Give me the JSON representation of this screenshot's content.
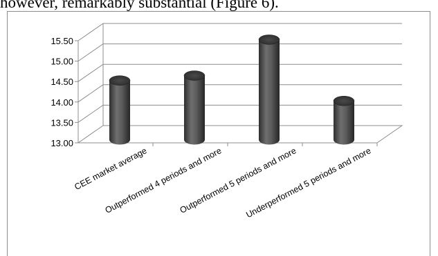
{
  "header_text": "however, remarkably substantial (Figure 6).",
  "chart_data": {
    "type": "bar",
    "style": "3d-cylinder",
    "color": "#5a5a5a",
    "categories": [
      "CEE market average",
      "Outperformed 4 periods and more",
      "Outperformed 5 periods and more",
      "Underperformed 5 periods and more"
    ],
    "values": [
      14.45,
      14.57,
      15.45,
      13.95
    ],
    "yticks": [
      "13.00",
      "13.50",
      "14.00",
      "14.50",
      "15.00",
      "15.50"
    ],
    "ylim": [
      13.0,
      15.5
    ],
    "grid": true,
    "title": "",
    "xlabel": "",
    "ylabel": ""
  }
}
